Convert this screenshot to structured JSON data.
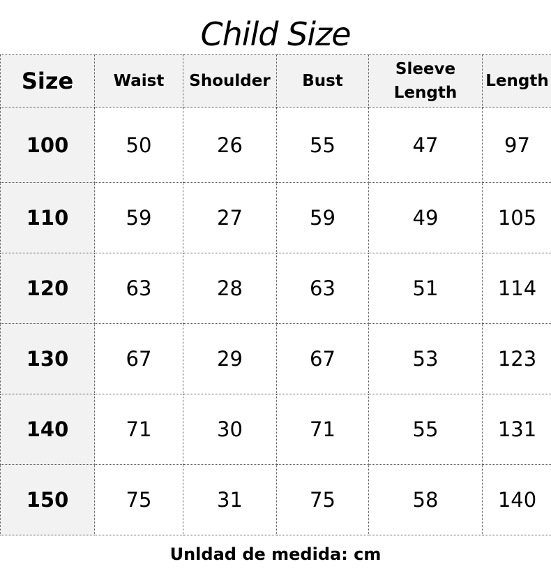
{
  "title": "Child Size",
  "headers": [
    "Size",
    "Waist",
    "Shoulder",
    "Bust",
    "Sleeve Length",
    "Length"
  ],
  "rows": [
    [
      "100",
      "50",
      "26",
      "55",
      "47",
      "97"
    ],
    [
      "110",
      "59",
      "27",
      "59",
      "49",
      "105"
    ],
    [
      "120",
      "63",
      "28",
      "63",
      "51",
      "114"
    ],
    [
      "130",
      "67",
      "29",
      "67",
      "53",
      "123"
    ],
    [
      "140",
      "71",
      "30",
      "71",
      "55",
      "131"
    ],
    [
      "150",
      "75",
      "31",
      "75",
      "58",
      "140"
    ]
  ],
  "footer": "Unldad de medida: cm",
  "colors": {
    "header_bg": "#f2f2f2",
    "border": "#555555"
  }
}
